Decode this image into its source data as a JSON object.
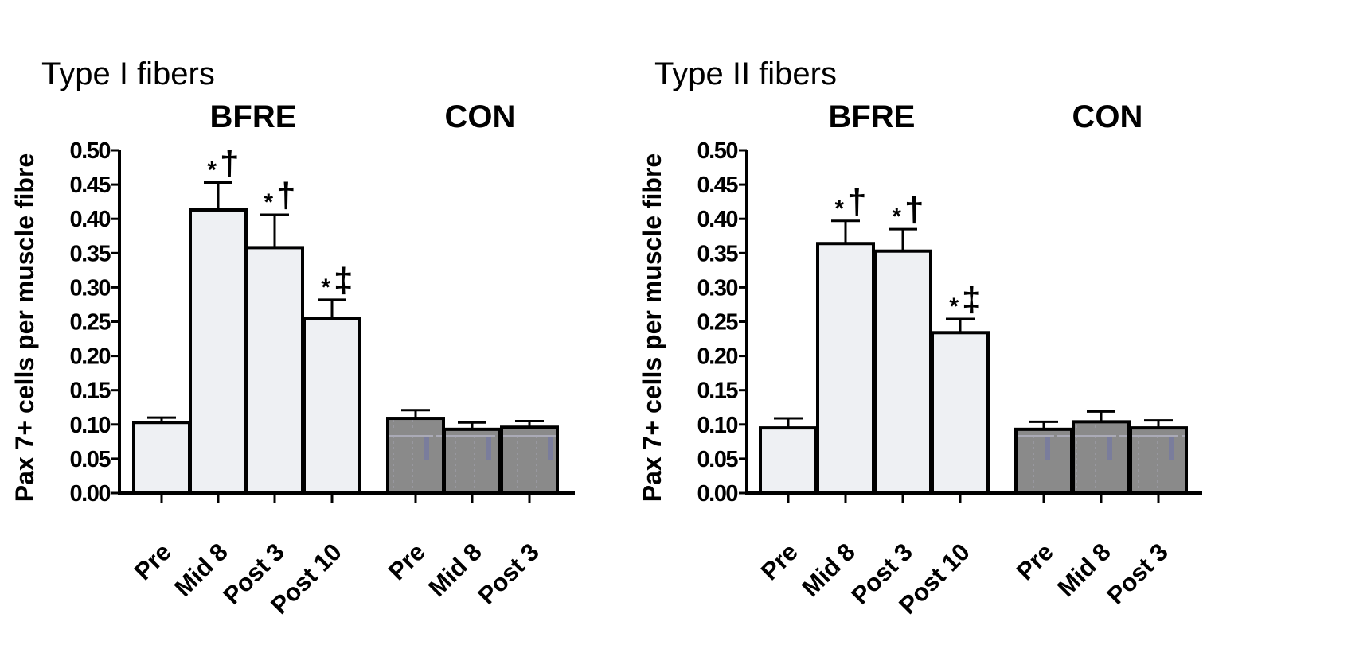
{
  "colors": {
    "bfre_fill": "#eef0f3",
    "con_fill": "#8a8a8a",
    "stroke": "#000000"
  },
  "chart_data": [
    {
      "type": "bar",
      "title": "Type I fibers",
      "ylabel": "Pax 7+ cells per muscle fibre",
      "ylim": [
        0,
        0.5
      ],
      "yticks": [
        "0.00",
        "0.05",
        "0.10",
        "0.15",
        "0.20",
        "0.25",
        "0.30",
        "0.35",
        "0.40",
        "0.45",
        "0.50"
      ],
      "groups": [
        {
          "name": "BFRE",
          "categories": [
            "Pre",
            "Mid 8",
            "Post 3",
            "Post 10"
          ],
          "values": [
            0.103,
            0.413,
            0.358,
            0.255
          ],
          "errors": [
            0.007,
            0.04,
            0.048,
            0.027
          ],
          "annotations": [
            {
              "star": "",
              "sym": ""
            },
            {
              "star": "*",
              "sym": "†"
            },
            {
              "star": "*",
              "sym": "†"
            },
            {
              "star": "*",
              "sym": "‡"
            }
          ]
        },
        {
          "name": "CON",
          "categories": [
            "Pre",
            "Mid 8",
            "Post 3"
          ],
          "values": [
            0.109,
            0.093,
            0.096
          ],
          "errors": [
            0.012,
            0.01,
            0.009
          ]
        }
      ]
    },
    {
      "type": "bar",
      "title": "Type II fibers",
      "ylabel": "Pax 7+ cells per muscle fibre",
      "ylim": [
        0,
        0.5
      ],
      "yticks": [
        "0.00",
        "0.05",
        "0.10",
        "0.15",
        "0.20",
        "0.25",
        "0.30",
        "0.35",
        "0.40",
        "0.45",
        "0.50"
      ],
      "groups": [
        {
          "name": "BFRE",
          "categories": [
            "Pre",
            "Mid 8",
            "Post 3",
            "Post 10"
          ],
          "values": [
            0.095,
            0.364,
            0.353,
            0.234
          ],
          "errors": [
            0.014,
            0.033,
            0.032,
            0.02
          ],
          "annotations": [
            {
              "star": "",
              "sym": ""
            },
            {
              "star": "*",
              "sym": "†"
            },
            {
              "star": "*",
              "sym": "†"
            },
            {
              "star": "*",
              "sym": "‡"
            }
          ]
        },
        {
          "name": "CON",
          "categories": [
            "Pre",
            "Mid 8",
            "Post 3"
          ],
          "values": [
            0.093,
            0.104,
            0.095
          ],
          "errors": [
            0.011,
            0.015,
            0.011
          ]
        }
      ]
    }
  ]
}
